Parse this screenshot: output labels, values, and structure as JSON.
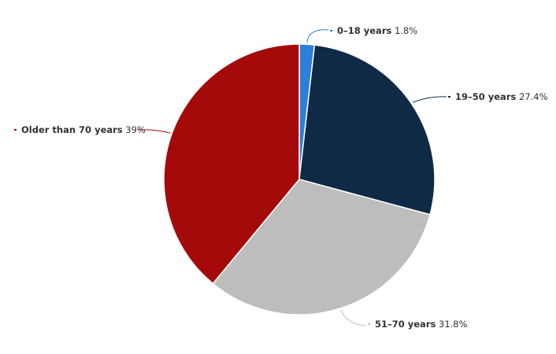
{
  "chart_data": {
    "type": "pie",
    "categories": [
      "0–18 years",
      "19–50 years",
      "51–70 years",
      "Older than 70 years"
    ],
    "values": [
      1.8,
      27.4,
      31.8,
      39
    ],
    "value_labels": [
      "1.8%",
      "27.4%",
      "31.8%",
      "39%"
    ],
    "colors": [
      "#2f7ed8",
      "#0f2a44",
      "#bdbdbd",
      "#a50a0a"
    ],
    "title": "",
    "legend": "none",
    "unit": "%"
  }
}
